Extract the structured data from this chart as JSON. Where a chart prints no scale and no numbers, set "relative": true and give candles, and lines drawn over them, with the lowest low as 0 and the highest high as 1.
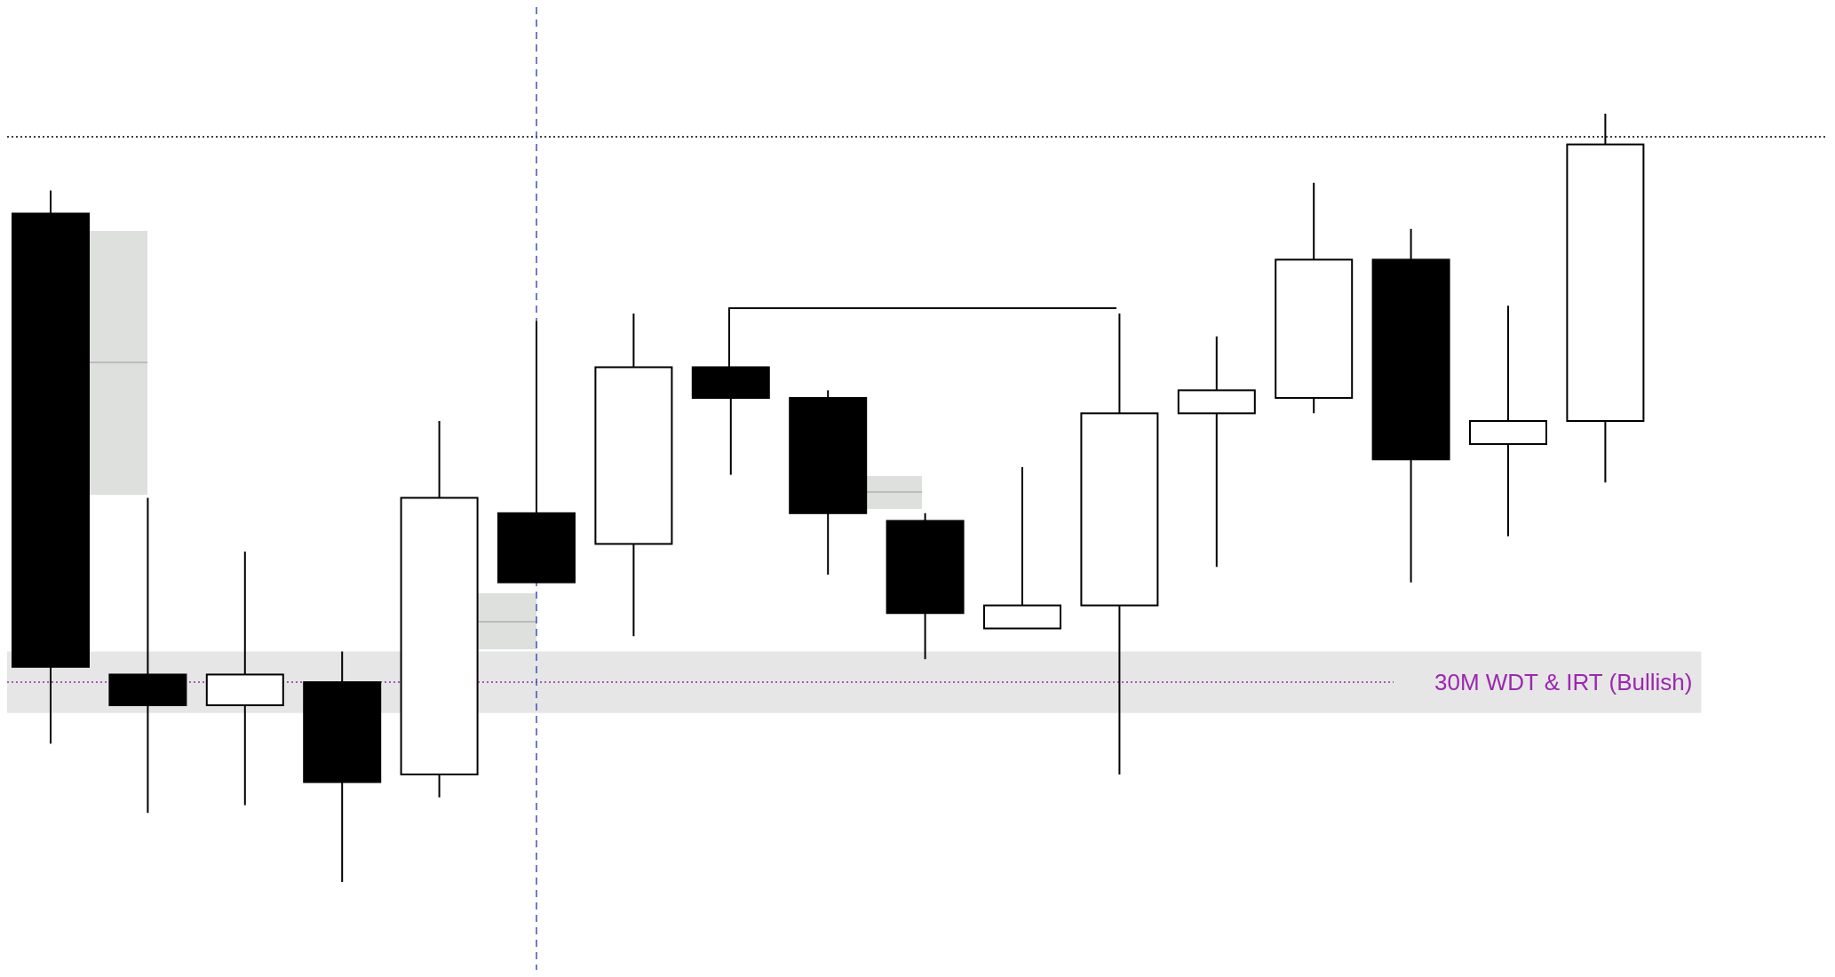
{
  "chart_data": {
    "type": "candlestick",
    "relative": true,
    "categories": [
      null,
      null,
      null,
      null,
      null,
      null,
      null,
      null,
      null,
      null,
      null,
      null,
      null,
      null,
      null,
      null,
      null
    ],
    "ohlc": [
      [
        0.87,
        0.9,
        0.18,
        0.28
      ],
      [
        0.27,
        0.5,
        0.09,
        0.23
      ],
      [
        0.23,
        0.43,
        0.1,
        0.27
      ],
      [
        0.26,
        0.3,
        0,
        0.13
      ],
      [
        0.14,
        0.6,
        0.11,
        0.5
      ],
      [
        0.48,
        0.73,
        0.39,
        0.39
      ],
      [
        0.44,
        0.74,
        0.32,
        0.67
      ],
      [
        0.67,
        0.67,
        0.53,
        0.63
      ],
      [
        0.63,
        0.64,
        0.4,
        0.48
      ],
      [
        0.47,
        0.48,
        0.29,
        0.35
      ],
      [
        0.33,
        0.54,
        0.33,
        0.36
      ],
      [
        0.36,
        0.74,
        0.14,
        0.61
      ],
      [
        0.61,
        0.71,
        0.41,
        0.64
      ],
      [
        0.63,
        0.91,
        0.61,
        0.81
      ],
      [
        0.81,
        0.85,
        0.39,
        0.55
      ],
      [
        0.57,
        0.75,
        0.45,
        0.6
      ],
      [
        0.6,
        1,
        0.52,
        0.96
      ]
    ],
    "bands": [
      {
        "axis": "y",
        "from": 0.22,
        "to": 0.3,
        "color": "#e6e6e6"
      }
    ],
    "ref_lines": [
      {
        "axis": "y",
        "value": 0.97,
        "color": "#000000",
        "line_style": "dotted"
      },
      {
        "axis": "y",
        "value": 0.26,
        "label": "30M WDT & IRT (Bullish)",
        "color": "#9c27b0",
        "line_style": "dotted"
      }
    ],
    "grid": false
  }
}
